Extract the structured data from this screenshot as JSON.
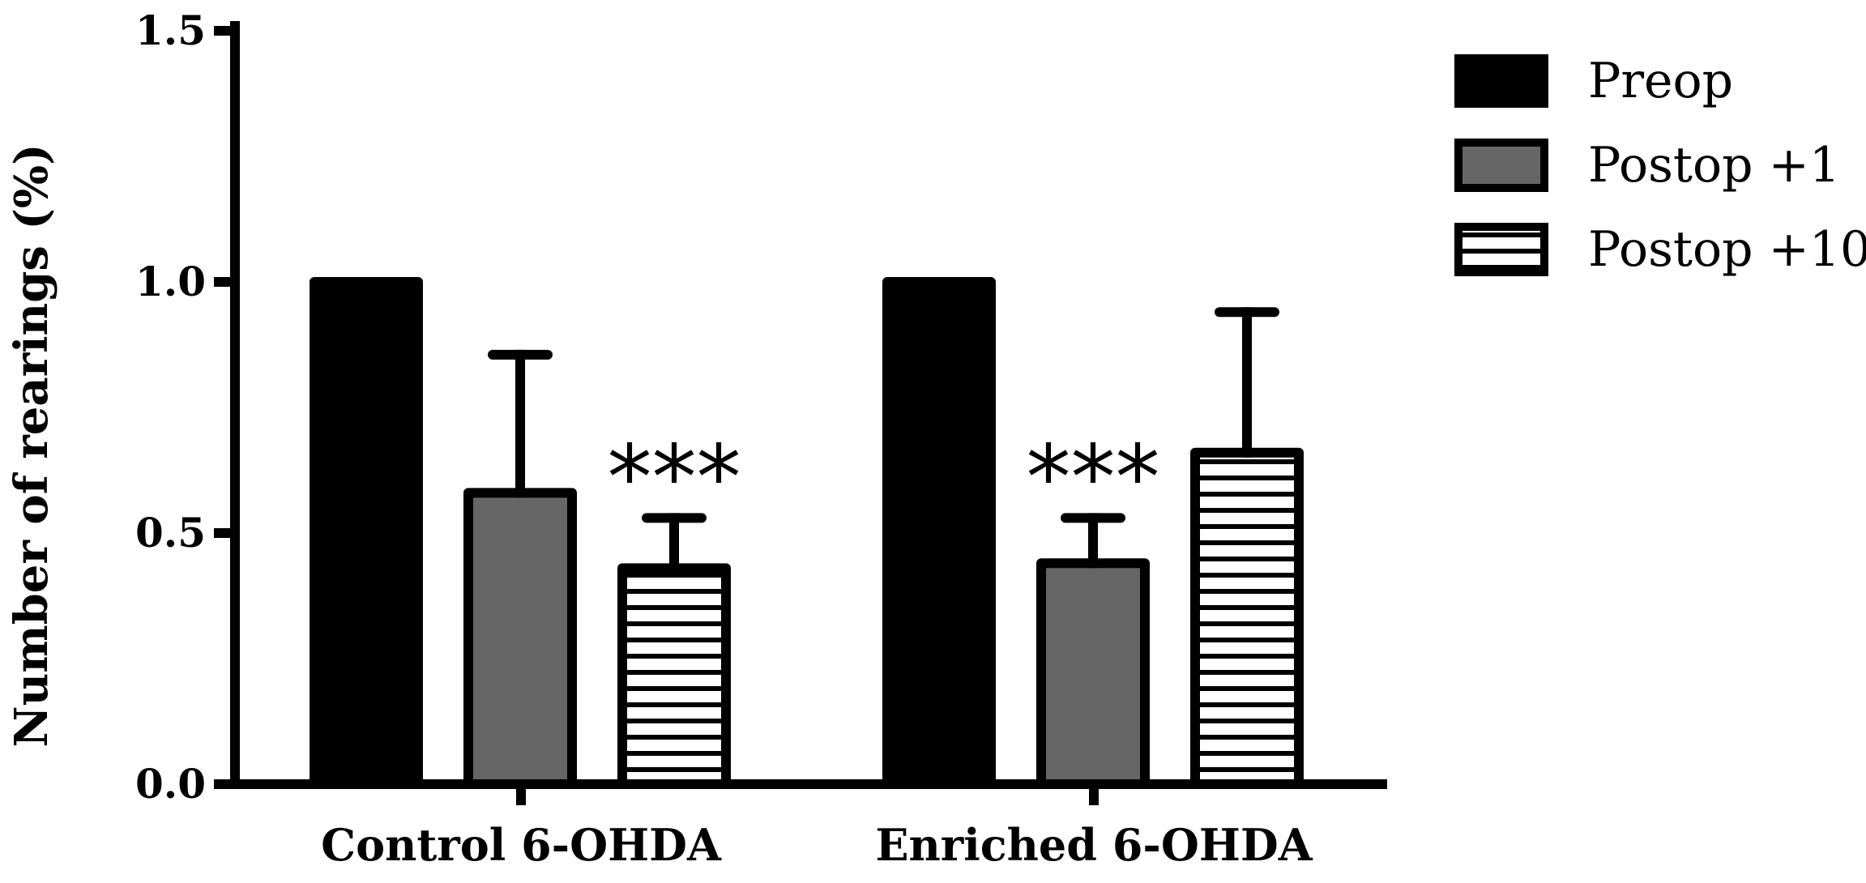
{
  "chart_data": {
    "type": "bar",
    "title": "",
    "xlabel": "",
    "ylabel": "Number of rearings (%)",
    "ylim": [
      0,
      1.5
    ],
    "yticks": [
      "0.0",
      "0.5",
      "1.0",
      "1.5"
    ],
    "ytick_values": [
      0,
      0.5,
      1.0,
      1.5
    ],
    "categories": [
      "Control 6-OHDA",
      "Enriched 6-OHDA"
    ],
    "legend_position": "top-right",
    "series": [
      {
        "name": "Preop",
        "style": "solid-black",
        "fill": "#000000",
        "values": [
          1.0,
          1.0
        ],
        "errors": [
          null,
          null
        ]
      },
      {
        "name": "Postop +1",
        "style": "solid-gray",
        "fill": "#666666",
        "values": [
          0.58,
          0.44
        ],
        "errors": [
          0.855,
          0.53
        ]
      },
      {
        "name": "Postop +10",
        "style": "horizontal-stripes",
        "fill": "#ffffff",
        "values": [
          0.43,
          0.66
        ],
        "errors": [
          0.53,
          0.94
        ]
      }
    ],
    "annotations": [
      {
        "text": "***",
        "category": "Control 6-OHDA",
        "series": "Postop +10"
      },
      {
        "text": "***",
        "category": "Enriched 6-OHDA",
        "series": "Postop +1"
      }
    ]
  }
}
